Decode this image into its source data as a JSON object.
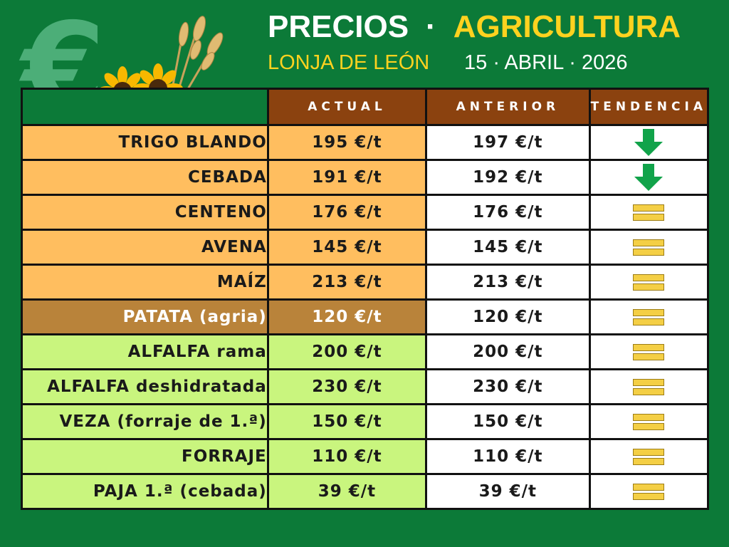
{
  "header": {
    "title_word1": "PRECIOS",
    "title_sep": "·",
    "title_word2": "AGRICULTURA",
    "subtitle_left": "LONJA DE LEÓN",
    "subtitle_right": "15 · ABRIL · 2026"
  },
  "decor": {
    "euro_symbol": "€"
  },
  "columns": {
    "actual": "ACTUAL",
    "anterior": "ANTERIOR",
    "tendencia": "TENDENCIA"
  },
  "trend_icons": {
    "down": "down-arrow-icon",
    "same": "equal-sign-icon"
  },
  "colors": {
    "background": "#0c7a38",
    "header_cells": "#8b420f",
    "cereal_rows": "#ffbe5f",
    "tuber_row": "#b9833a",
    "forage_rows": "#c9f57e",
    "arrow_down": "#11a34a",
    "equal_sign": "#f4cf45",
    "accent_title": "#ffd21f"
  },
  "rows": [
    {
      "product": "TRIGO BLANDO",
      "actual": "195 €/t",
      "anterior": "197 €/t",
      "trend": "down",
      "group": "cereal"
    },
    {
      "product": "CEBADA",
      "actual": "191 €/t",
      "anterior": "192 €/t",
      "trend": "down",
      "group": "cereal"
    },
    {
      "product": "CENTENO",
      "actual": "176 €/t",
      "anterior": "176 €/t",
      "trend": "same",
      "group": "cereal"
    },
    {
      "product": "AVENA",
      "actual": "145 €/t",
      "anterior": "145 €/t",
      "trend": "same",
      "group": "cereal"
    },
    {
      "product": "MAÍZ",
      "actual": "213 €/t",
      "anterior": "213 €/t",
      "trend": "same",
      "group": "cereal"
    },
    {
      "product": "PATATA (agria)",
      "actual": "120 €/t",
      "anterior": "120 €/t",
      "trend": "same",
      "group": "tuber"
    },
    {
      "product": "ALFALFA rama",
      "actual": "200 €/t",
      "anterior": "200 €/t",
      "trend": "same",
      "group": "forage"
    },
    {
      "product": "ALFALFA deshidratada",
      "actual": "230 €/t",
      "anterior": "230 €/t",
      "trend": "same",
      "group": "forage"
    },
    {
      "product": "VEZA (forraje de 1.ª)",
      "actual": "150 €/t",
      "anterior": "150 €/t",
      "trend": "same",
      "group": "forage"
    },
    {
      "product": "FORRAJE",
      "actual": "110 €/t",
      "anterior": "110 €/t",
      "trend": "same",
      "group": "forage"
    },
    {
      "product": "PAJA 1.ª (cebada)",
      "actual": "39 €/t",
      "anterior": "39 €/t",
      "trend": "same",
      "group": "forage"
    }
  ]
}
